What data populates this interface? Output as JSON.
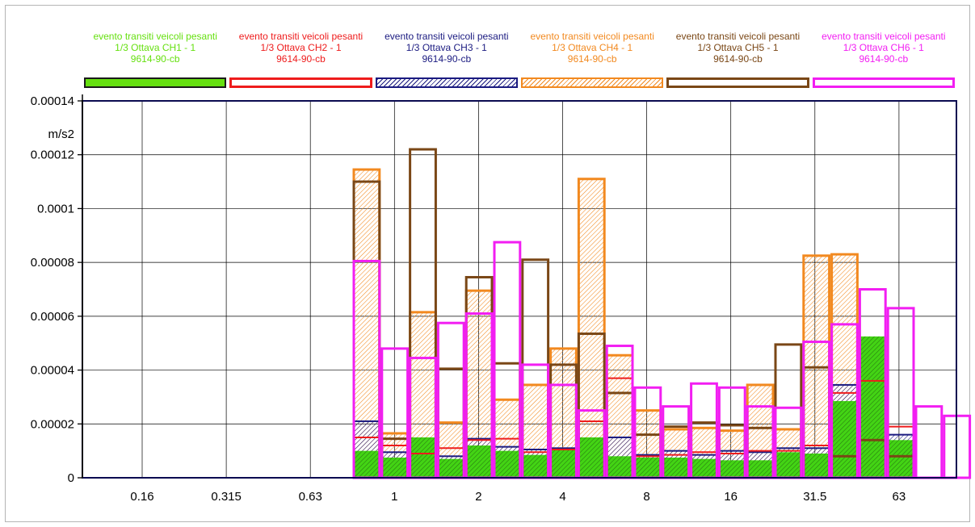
{
  "legend": [
    {
      "name": "evento transiti veicoli pesanti",
      "channel": "1/3 Ottava CH1 - 1",
      "code": "9614-90-cb",
      "color": "#66e010",
      "style": "solid"
    },
    {
      "name": "evento transiti veicoli pesanti",
      "channel": "1/3 Ottava CH2 - 1",
      "code": "9614-90-cb",
      "color": "#ee1c1c",
      "style": "outline"
    },
    {
      "name": "evento transiti veicoli pesanti",
      "channel": "1/3 Ottava CH3 - 1",
      "code": "9614-90-cb",
      "color": "#1a1a80",
      "style": "hatch"
    },
    {
      "name": "evento transiti veicoli pesanti",
      "channel": "1/3 Ottava CH4 - 1",
      "code": "9614-90-cb",
      "color": "#f2891f",
      "style": "hatch"
    },
    {
      "name": "evento transiti veicoli pesanti",
      "channel": "1/3 Ottava CH5 - 1",
      "code": "9614-90-cb",
      "color": "#7a4716",
      "style": "outline"
    },
    {
      "name": "evento transiti veicoli pesanti",
      "channel": "1/3 Ottava CH6 - 1",
      "code": "9614-90-cb",
      "color": "#f21ef2",
      "style": "outline"
    }
  ],
  "chart_data": {
    "type": "bar",
    "ylabel": "m/s2",
    "ylim": [
      0,
      0.00014
    ],
    "yticks": [
      "0",
      "0.00002",
      "0.00004",
      "0.00006",
      "0.00008",
      "0.0001",
      "0.00012",
      "0.00014"
    ],
    "xlabels": [
      "0.16",
      "0.315",
      "0.63",
      "1",
      "2",
      "4",
      "8",
      "16",
      "31.5",
      "63"
    ],
    "xscale": "log (1/3 octave bands)",
    "grid": true,
    "legend_position": "top",
    "categories": [
      "0.8",
      "1",
      "1.25",
      "1.6",
      "2",
      "2.5",
      "3.15",
      "4",
      "5",
      "6.3",
      "8",
      "10",
      "12.5",
      "16",
      "20",
      "25",
      "31.5",
      "40",
      "50",
      "63",
      "80",
      "100"
    ],
    "series": [
      {
        "name": "1/3 Ottava CH1 - 1",
        "color": "#66e010",
        "values": [
          1e-05,
          7.5e-06,
          1.5e-05,
          7e-06,
          1.2e-05,
          1e-05,
          8.5e-06,
          1.05e-05,
          1.5e-05,
          8e-06,
          7.5e-06,
          7.5e-06,
          7e-06,
          6.5e-06,
          6.5e-06,
          9.5e-06,
          9e-06,
          2.85e-05,
          5.25e-05,
          1.4e-05,
          0,
          0
        ]
      },
      {
        "name": "1/3 Ottava CH2 - 1",
        "color": "#ee1c1c",
        "values": [
          1.5e-05,
          1.2e-05,
          9e-06,
          1.1e-05,
          1.4e-05,
          1.45e-05,
          9.5e-06,
          1.05e-05,
          2.1e-05,
          3.7e-05,
          8e-06,
          8.5e-06,
          9.5e-06,
          9e-06,
          1e-05,
          1e-05,
          1.2e-05,
          3.15e-05,
          3.6e-05,
          1.9e-05,
          0,
          0
        ]
      },
      {
        "name": "1/3 Ottava CH3 - 1",
        "color": "#1a1a80",
        "values": [
          2.1e-05,
          9.5e-06,
          5.5e-06,
          8e-06,
          1.45e-05,
          1.15e-05,
          1.05e-05,
          1.1e-05,
          1.15e-05,
          1.5e-05,
          8.5e-06,
          1e-05,
          8.5e-06,
          1e-05,
          9.5e-06,
          1.1e-05,
          1.1e-05,
          3.45e-05,
          3.4e-05,
          1.6e-05,
          0,
          0
        ]
      },
      {
        "name": "1/3 Ottava CH4 - 1",
        "color": "#f2891f",
        "values": [
          0.0001145,
          1.65e-05,
          6.15e-05,
          2.05e-05,
          6.95e-05,
          2.9e-05,
          3.45e-05,
          4.8e-05,
          0.000111,
          4.55e-05,
          2.5e-05,
          1.8e-05,
          1.85e-05,
          1.75e-05,
          3.45e-05,
          1.8e-05,
          8.25e-05,
          8.3e-05,
          1.35e-05,
          1.2e-05,
          0,
          0
        ]
      },
      {
        "name": "1/3 Ottava CH5 - 1",
        "color": "#7a4716",
        "values": [
          0.00011,
          1.45e-05,
          0.000122,
          4.05e-05,
          7.45e-05,
          4.25e-05,
          8.1e-05,
          4.2e-05,
          5.35e-05,
          3.15e-05,
          1.6e-05,
          1.9e-05,
          2.05e-05,
          1.95e-05,
          1.85e-05,
          4.95e-05,
          4.1e-05,
          8e-06,
          1.4e-05,
          8e-06,
          0,
          0
        ]
      },
      {
        "name": "1/3 Ottava CH6 - 1",
        "color": "#f21ef2",
        "values": [
          8.05e-05,
          4.8e-05,
          4.45e-05,
          5.75e-05,
          6.1e-05,
          8.75e-05,
          4.2e-05,
          3.45e-05,
          2.5e-05,
          4.9e-05,
          3.35e-05,
          2.65e-05,
          3.5e-05,
          3.35e-05,
          2.65e-05,
          2.6e-05,
          5.05e-05,
          5.7e-05,
          7e-05,
          6.3e-05,
          2.65e-05,
          2.3e-05
        ]
      }
    ]
  }
}
